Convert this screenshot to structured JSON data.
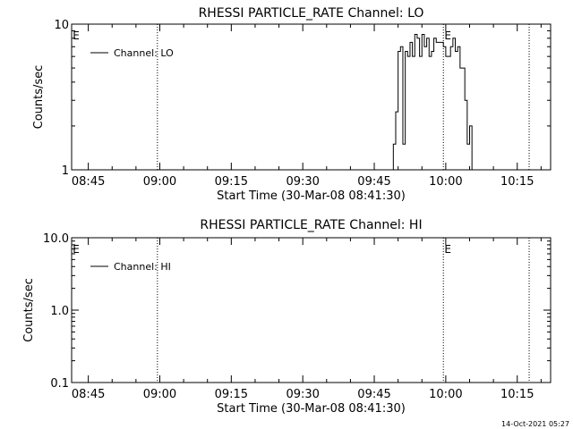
{
  "footer": {
    "timestamp": "14-Oct-2021 05:27"
  },
  "chart_data": [
    {
      "type": "line",
      "title": "RHESSI PARTICLE_RATE Channel: LO",
      "xlabel": "Start Time (30-Mar-08 08:41:30)",
      "ylabel": "Counts/sec",
      "yscale": "log",
      "ylim": [
        1,
        10
      ],
      "xlim": [
        "08:41:30",
        "10:22:00"
      ],
      "xticks": [
        "08:45",
        "09:00",
        "09:15",
        "09:30",
        "09:45",
        "10:00",
        "10:15"
      ],
      "yticks": [
        "1",
        "10"
      ],
      "legend": {
        "entries": [
          "Channel: LO"
        ],
        "position": "top-left"
      },
      "markers": [
        {
          "time": "08:41:30",
          "label": "E"
        },
        {
          "time": "09:59:30",
          "label": "E"
        }
      ],
      "vlines": [
        "08:59:30",
        "09:59:30",
        "10:17:30"
      ],
      "series": [
        {
          "name": "Channel: LO",
          "x": [
            "09:49:00",
            "09:49:30",
            "09:50:00",
            "09:50:30",
            "09:51:00",
            "09:51:30",
            "09:52:00",
            "09:52:30",
            "09:53:00",
            "09:53:30",
            "09:54:00",
            "09:54:30",
            "09:55:00",
            "09:55:30",
            "09:56:00",
            "09:56:30",
            "09:57:00",
            "09:57:30",
            "09:58:00",
            "09:58:30",
            "09:59:00",
            "09:59:30",
            "10:00:00",
            "10:00:30",
            "10:01:00",
            "10:01:30",
            "10:02:00",
            "10:02:30",
            "10:03:00",
            "10:03:30",
            "10:04:00",
            "10:04:30",
            "10:05:00",
            "10:05:30"
          ],
          "y": [
            1.5,
            2.5,
            6.5,
            7,
            1.5,
            6.5,
            6,
            7.5,
            6,
            8.5,
            8,
            6,
            8.5,
            7,
            8,
            6,
            6.5,
            8,
            7.5,
            7.5,
            7.5,
            7,
            6,
            6,
            7,
            8,
            6.5,
            7,
            5,
            5,
            3,
            1.5,
            2,
            1
          ]
        }
      ]
    },
    {
      "type": "line",
      "title": "RHESSI PARTICLE_RATE Channel: HI",
      "xlabel": "Start Time (30-Mar-08 08:41:30)",
      "ylabel": "Counts/sec",
      "yscale": "log",
      "ylim": [
        0.1,
        10
      ],
      "xlim": [
        "08:41:30",
        "10:22:00"
      ],
      "xticks": [
        "08:45",
        "09:00",
        "09:15",
        "09:30",
        "09:45",
        "10:00",
        "10:15"
      ],
      "yticks": [
        "0.1",
        "1.0",
        "10.0"
      ],
      "legend": {
        "entries": [
          "Channel: HI"
        ],
        "position": "top-left"
      },
      "markers": [
        {
          "time": "08:41:30",
          "label": "E"
        },
        {
          "time": "09:59:30",
          "label": "E"
        }
      ],
      "vlines": [
        "08:59:30",
        "09:59:30",
        "10:17:30"
      ],
      "series": [
        {
          "name": "Channel: HI",
          "x": [],
          "y": []
        }
      ]
    }
  ]
}
